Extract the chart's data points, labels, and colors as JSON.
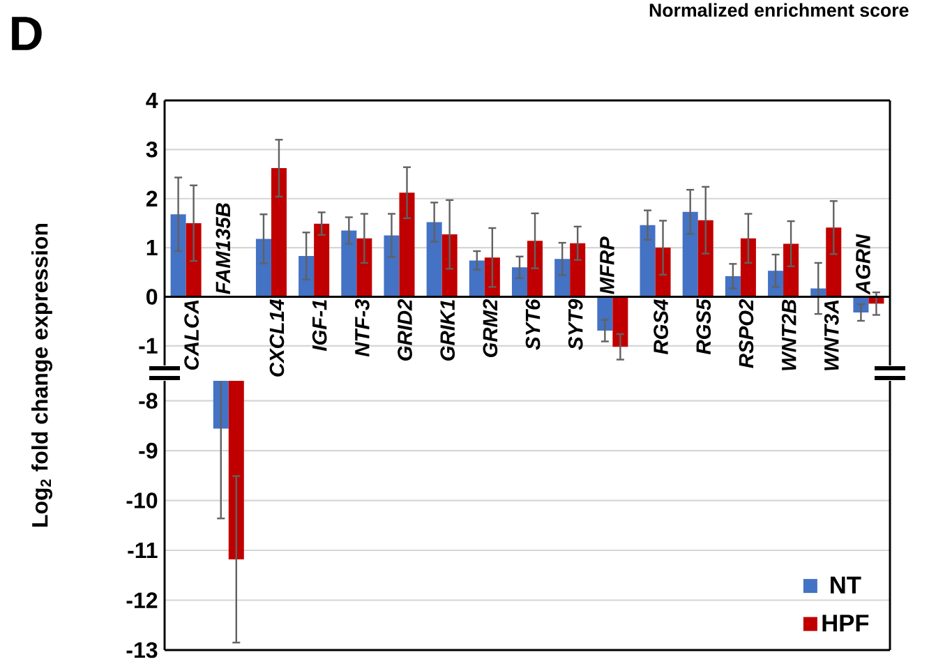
{
  "chart_data": [
    {
      "type": "bar",
      "title": "D",
      "annotations": [
        "Normalized enrichment score"
      ],
      "ylabel": "Log$_{2}$ fold change expression",
      "categories": [
        "CALCA",
        "FAM135B",
        "CXCL14",
        "IGF-1",
        "NTF-3",
        "GRID2",
        "GRIK1",
        "GRM2",
        "SYT6",
        "SYT9",
        "MFRP",
        "RGS4",
        "RGS5",
        "RSPO2",
        "WNT2B",
        "WNT3A",
        "AGRN"
      ],
      "series": [
        {
          "color": "#4472c4",
          "values": [
            1.68,
            null,
            1.18,
            0.83,
            1.35,
            1.25,
            1.52,
            0.74,
            0.6,
            0.77,
            -0.69,
            1.46,
            1.73,
            0.42,
            0.53,
            0.17,
            -0.32
          ],
          "errors": [
            0.75,
            null,
            0.5,
            0.48,
            0.27,
            0.44,
            0.4,
            0.19,
            0.22,
            0.33,
            0.22,
            0.3,
            0.45,
            0.25,
            0.33,
            0.52,
            0.17
          ]
        },
        {
          "color": "#c00000",
          "values": [
            1.5,
            null,
            2.62,
            1.49,
            1.19,
            2.12,
            1.27,
            0.8,
            1.14,
            1.09,
            -1.02,
            1.0,
            1.56,
            1.19,
            1.08,
            1.41,
            -0.14
          ],
          "errors": [
            0.77,
            null,
            0.58,
            0.23,
            0.5,
            0.52,
            0.7,
            0.6,
            0.56,
            0.34,
            0.26,
            0.55,
            0.68,
            0.5,
            0.46,
            0.54,
            0.23
          ]
        }
      ],
      "ylim": [
        -1.4,
        4
      ],
      "yticks": [
        -1,
        0,
        1,
        2,
        3,
        4
      ],
      "grid": "y"
    },
    {
      "type": "bar",
      "categories": [
        null,
        null,
        null,
        null,
        null,
        null,
        null,
        null,
        null,
        null,
        null,
        null,
        null,
        null,
        null,
        null,
        null
      ],
      "series": [
        {
          "name": "NT",
          "color": "#4472c4",
          "values": [
            null,
            -8.56,
            null,
            null,
            null,
            null,
            null,
            null,
            null,
            null,
            null,
            null,
            null,
            null,
            null,
            null,
            null
          ],
          "errors": [
            null,
            1.8,
            null,
            null,
            null,
            null,
            null,
            null,
            null,
            null,
            null,
            null,
            null,
            null,
            null,
            null,
            null
          ]
        },
        {
          "name": "HPF",
          "color": "#c00000",
          "values": [
            null,
            -11.18,
            null,
            null,
            null,
            null,
            null,
            null,
            null,
            null,
            null,
            null,
            null,
            null,
            null,
            null,
            null
          ],
          "errors": [
            null,
            1.67,
            null,
            null,
            null,
            null,
            null,
            null,
            null,
            null,
            null,
            null,
            null,
            null,
            null,
            null,
            null
          ]
        }
      ],
      "ylim": [
        -13,
        -7.6
      ],
      "yticks": [
        -8,
        -9,
        -10,
        -11,
        -12,
        -13
      ],
      "grid": "y",
      "legend": "bottom right",
      "tick_labels": "y"
    }
  ]
}
